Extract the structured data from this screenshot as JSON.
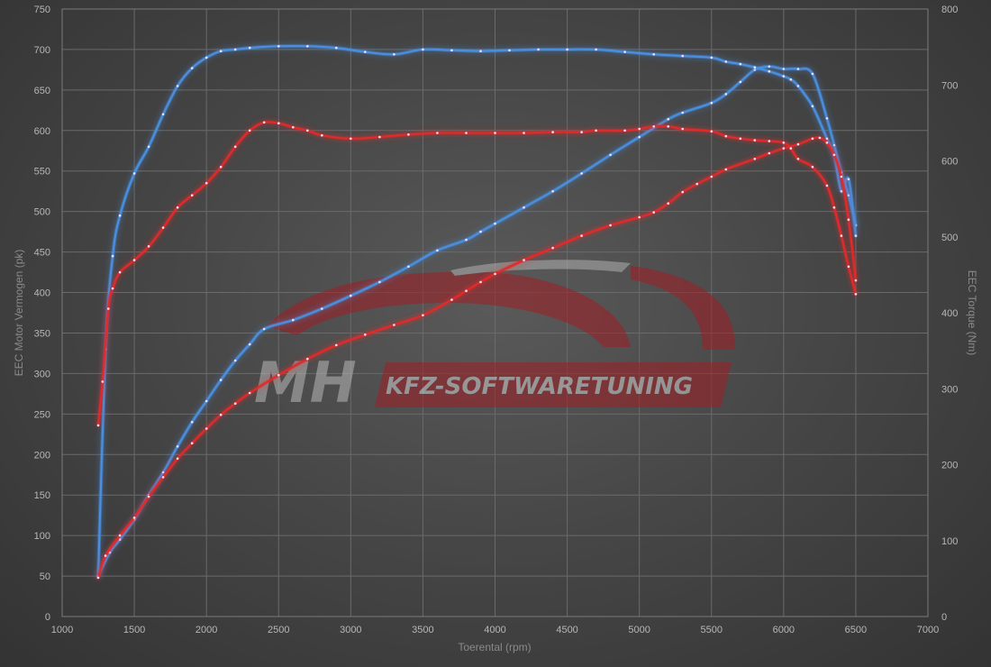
{
  "chart_data": {
    "type": "line",
    "xlabel": "Toerental (rpm)",
    "ylabel": "EEC Motor Vermogen (pk)",
    "y2label": "EEC Torque (Nm)",
    "xlim": [
      1000,
      7000
    ],
    "ylim": [
      0,
      750
    ],
    "y2lim": [
      0,
      800
    ],
    "x_ticks": [
      1000,
      1500,
      2000,
      2500,
      3000,
      3500,
      4000,
      4500,
      5000,
      5500,
      6000,
      6500,
      7000
    ],
    "y_ticks": [
      0,
      50,
      100,
      150,
      200,
      250,
      300,
      350,
      400,
      450,
      500,
      550,
      600,
      650,
      700,
      750
    ],
    "y2_ticks": [
      0,
      100,
      200,
      300,
      400,
      500,
      600,
      700,
      800
    ],
    "grid": true,
    "watermark": {
      "left_text": "MH",
      "right_text": "KFZ-SOFTWARETUNING"
    },
    "colors": {
      "tuned": "#4a90e2",
      "stock": "#e22a2a",
      "watermark": "#a01e24"
    },
    "series": [
      {
        "key": "tuned_torque",
        "axis": "left",
        "color": "#4a90e2",
        "x": [
          1250,
          1330,
          1400,
          1500,
          1600,
          1700,
          1800,
          1900,
          2000,
          2100,
          2200,
          2300,
          2400,
          2600,
          2800,
          3000,
          3200,
          3400,
          3600,
          3800,
          3900,
          4000,
          4200,
          4400,
          4600,
          4800,
          5000,
          5200,
          5300,
          5500,
          5600,
          5700,
          5800,
          5900,
          6000,
          6100,
          6200,
          6300,
          6350,
          6400,
          6450,
          6500
        ],
        "y": [
          50,
          79,
          95,
          120,
          150,
          178,
          210,
          240,
          266,
          292,
          316,
          336,
          355,
          366,
          380,
          396,
          413,
          432,
          452,
          465,
          475,
          485,
          505,
          525,
          547,
          570,
          592,
          614,
          622,
          634,
          645,
          660,
          675,
          679,
          676,
          676,
          670,
          615,
          582,
          548,
          520,
          483
        ]
      },
      {
        "key": "tuned_power",
        "axis": "left",
        "color": "#4a90e2",
        "x": [
          1250,
          1300,
          1350,
          1400,
          1500,
          1600,
          1700,
          1800,
          1900,
          2000,
          2100,
          2200,
          2300,
          2500,
          2700,
          2900,
          3100,
          3300,
          3500,
          3700,
          3900,
          4100,
          4300,
          4500,
          4700,
          4900,
          5100,
          5300,
          5500,
          5600,
          5700,
          5800,
          5900,
          6000,
          6050,
          6100,
          6200,
          6300,
          6350,
          6400,
          6450,
          6500
        ],
        "y": [
          50,
          330,
          445,
          495,
          547,
          580,
          620,
          655,
          677,
          690,
          698,
          700,
          702,
          704,
          704,
          702,
          697,
          694,
          700,
          699,
          698,
          699,
          700,
          700,
          700,
          697,
          694,
          692,
          690,
          685,
          682,
          678,
          673,
          667,
          663,
          655,
          630,
          590,
          570,
          525,
          540,
          470
        ]
      },
      {
        "key": "stock_torque",
        "axis": "left",
        "color": "#e22a2a",
        "x": [
          1250,
          1300,
          1400,
          1500,
          1600,
          1700,
          1800,
          1900,
          2000,
          2100,
          2200,
          2300,
          2500,
          2700,
          2900,
          3100,
          3300,
          3500,
          3700,
          3800,
          3900,
          4000,
          4200,
          4400,
          4600,
          4800,
          5000,
          5100,
          5200,
          5300,
          5400,
          5500,
          5600,
          5800,
          5900,
          6000,
          6100,
          6200,
          6250,
          6300,
          6350,
          6400,
          6450,
          6500
        ],
        "y": [
          48,
          75,
          100,
          122,
          148,
          172,
          195,
          214,
          232,
          249,
          263,
          276,
          298,
          318,
          335,
          348,
          360,
          372,
          391,
          402,
          413,
          423,
          440,
          455,
          470,
          483,
          493,
          499,
          510,
          524,
          534,
          543,
          552,
          565,
          572,
          578,
          583,
          590,
          591,
          585,
          570,
          543,
          490,
          415
        ]
      },
      {
        "key": "stock_power",
        "axis": "left",
        "color": "#e22a2a",
        "x": [
          1250,
          1280,
          1320,
          1350,
          1400,
          1500,
          1600,
          1700,
          1800,
          1900,
          2000,
          2100,
          2200,
          2300,
          2400,
          2500,
          2600,
          2700,
          2800,
          3000,
          3200,
          3400,
          3600,
          3800,
          4000,
          4200,
          4400,
          4600,
          4700,
          4900,
          5000,
          5100,
          5200,
          5300,
          5500,
          5600,
          5700,
          5800,
          5900,
          6000,
          6050,
          6100,
          6200,
          6300,
          6350,
          6400,
          6450,
          6500
        ],
        "y": [
          236,
          290,
          380,
          405,
          425,
          440,
          457,
          480,
          505,
          520,
          535,
          555,
          580,
          600,
          610,
          609,
          604,
          600,
          594,
          590,
          592,
          595,
          597,
          597,
          597,
          597,
          598,
          598,
          600,
          600,
          602,
          605,
          605,
          602,
          599,
          593,
          590,
          588,
          587,
          585,
          578,
          565,
          555,
          532,
          505,
          470,
          432,
          398
        ]
      }
    ]
  }
}
